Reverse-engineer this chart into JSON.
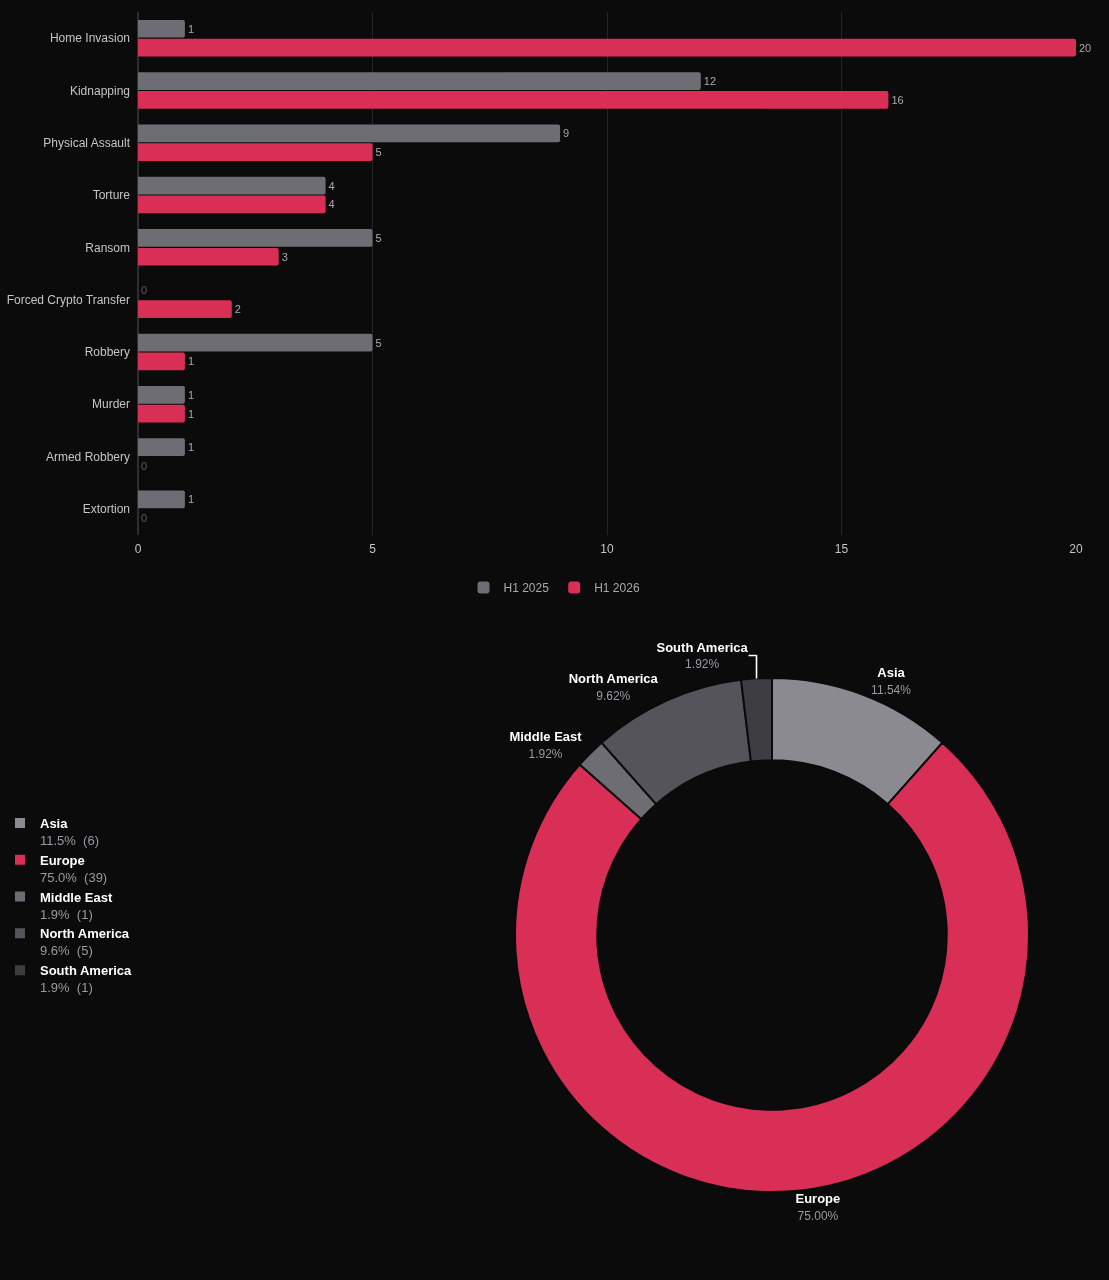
{
  "chart_data": [
    {
      "type": "bar",
      "orientation": "horizontal",
      "categories": [
        "Home Invasion",
        "Kidnapping",
        "Physical Assault",
        "Torture",
        "Ransom",
        "Forced Crypto Transfer",
        "Robbery",
        "Murder",
        "Armed Robbery",
        "Extortion"
      ],
      "series": [
        {
          "name": "H1 2025",
          "color": "#6e6d74",
          "values": [
            1,
            12,
            9,
            4,
            5,
            0,
            5,
            1,
            1,
            1
          ]
        },
        {
          "name": "H1 2026",
          "color": "#d92f56",
          "values": [
            20,
            16,
            5,
            4,
            3,
            2,
            1,
            1,
            0,
            0
          ]
        }
      ],
      "xlim": [
        0,
        20
      ],
      "xticks": [
        0,
        5,
        10,
        15,
        20
      ],
      "grid": "x",
      "legend": "bottom",
      "data_labels": true
    },
    {
      "type": "donut",
      "categories": [
        "Asia",
        "Europe",
        "Middle East",
        "North America",
        "South America"
      ],
      "values": [
        11.54,
        75.0,
        1.92,
        9.62,
        1.92
      ],
      "colors": [
        "#8b8a91",
        "#d92f56",
        "#6e6d73",
        "#55545a",
        "#3e3d42"
      ],
      "value_labels": [
        "11.54%",
        "75.00%",
        "1.92%",
        "9.62%",
        "1.92%"
      ],
      "annotations": [
        "11.5%  (6)",
        "75.0%  (39)",
        "1.9%  (1)",
        "9.6%  (5)",
        "1.9%  (1)"
      ],
      "legend": "left"
    }
  ]
}
